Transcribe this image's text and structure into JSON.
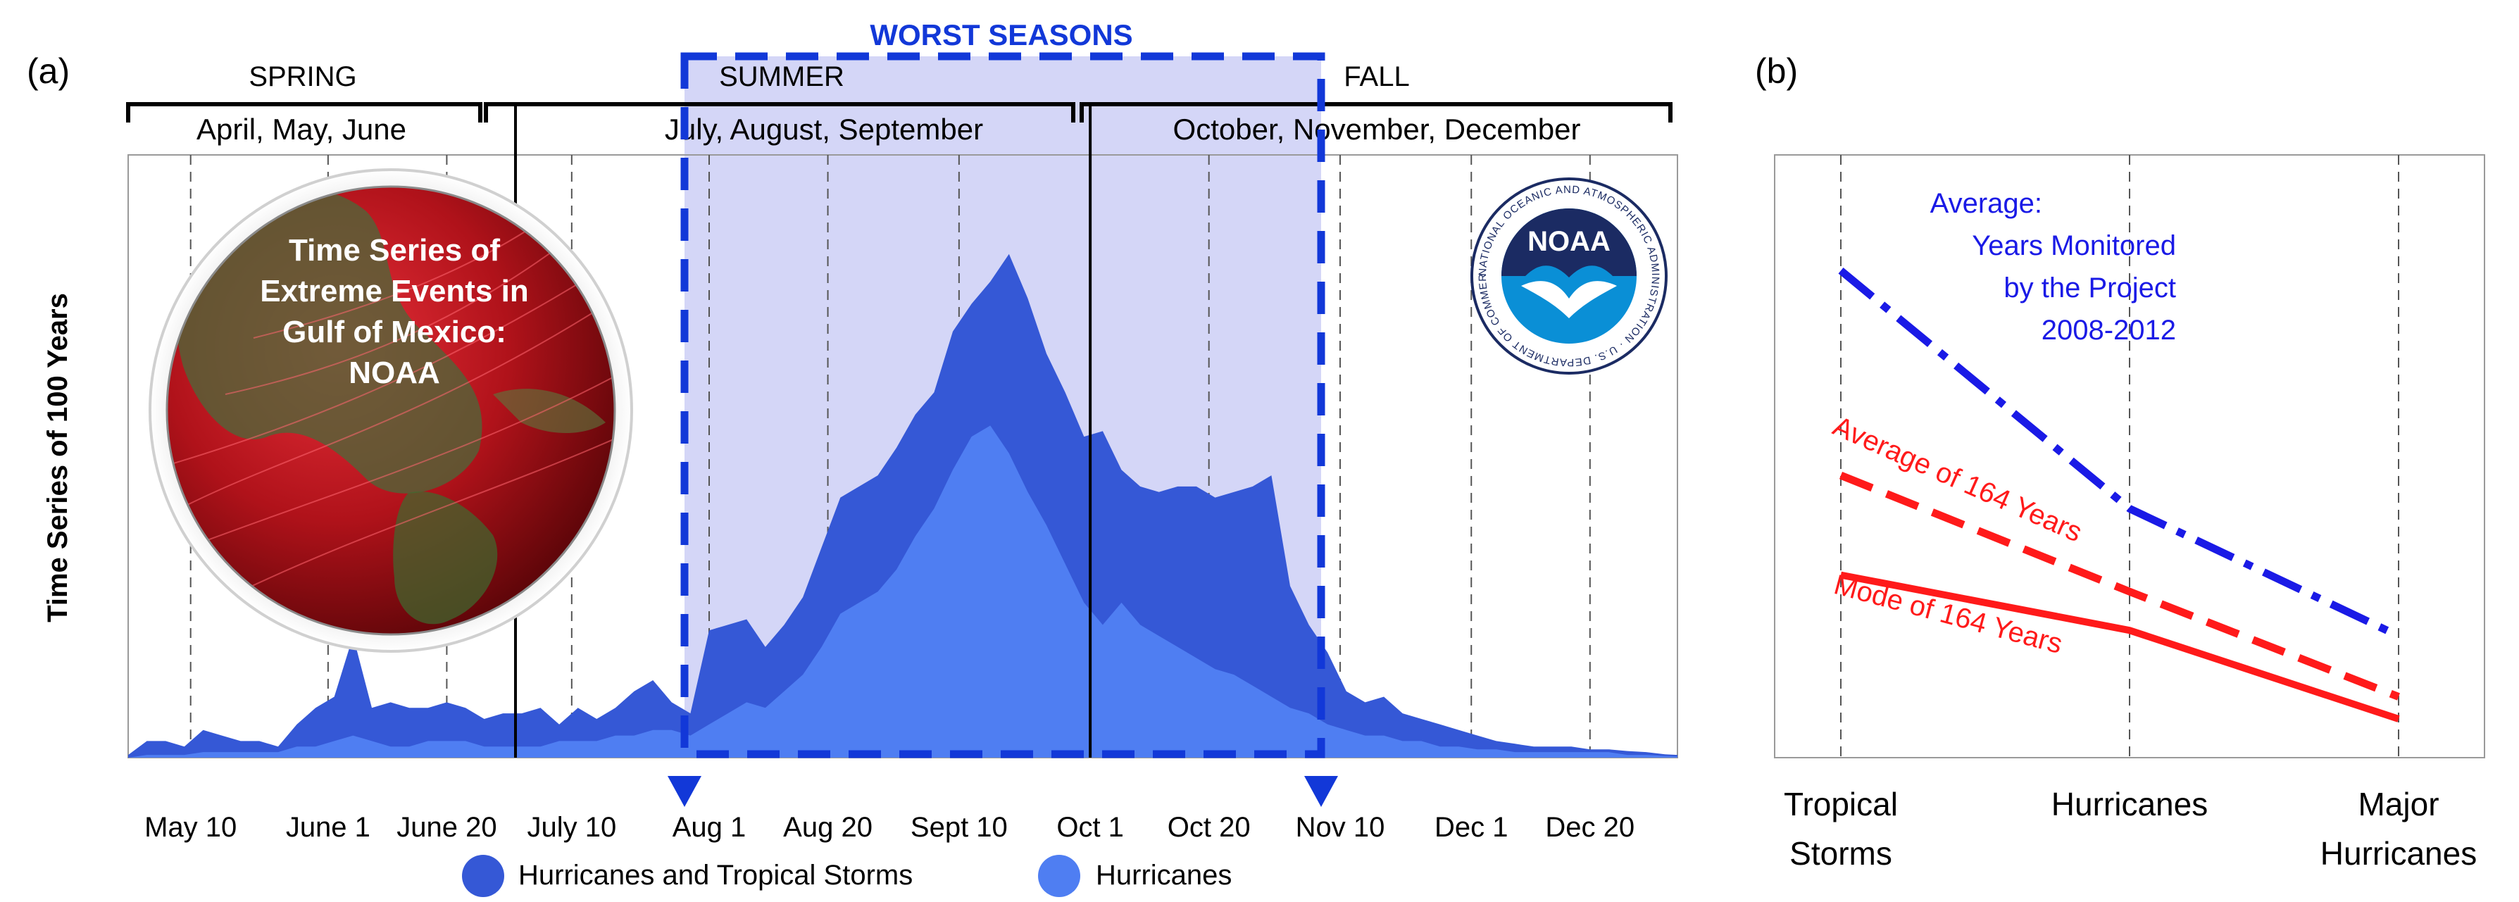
{
  "panel_a": {
    "label": "(a)",
    "highlight_title": "WORST SEASONS",
    "seasons": [
      {
        "name": "SPRING",
        "months": "April, May, June"
      },
      {
        "name": "SUMMER",
        "months": "July, August, September"
      },
      {
        "name": "FALL",
        "months": "October, November, December"
      }
    ],
    "globe_text": [
      "Time Series of",
      "Extreme Events in",
      "Gulf of Mexico:",
      "NOAA"
    ],
    "logo": {
      "center_text": "NOAA",
      "ring_text": "NATIONAL OCEANIC AND ATMOSPHERIC ADMINISTRATION · U.S. DEPARTMENT OF COMMERCE"
    }
  },
  "panel_b": {
    "label": "(b)"
  },
  "colors": {
    "storms": "#3558d6",
    "hurricanes": "#4f7ef2",
    "highlight_fill": "#c8cbf5",
    "highlight_border": "#1238d8",
    "average_project": "#1a1ae6",
    "average_164": "#ff1a1a",
    "mode_164": "#ff1a1a",
    "globe_ocean": "#b0121a",
    "logo_blue": "#0a8fd6",
    "logo_navy": "#1b2b63"
  },
  "chart_data": [
    {
      "type": "area",
      "id": "seasonal-activity",
      "ylabel": "Time Series of 100 Years",
      "xlabel": "",
      "x_unit": "day of year",
      "xlim": [
        120,
        368
      ],
      "ylim": [
        0,
        100
      ],
      "tick_labels": [
        "May 10",
        "June 1",
        "June 20",
        "July 10",
        "Aug 1",
        "Aug 20",
        "Sept 10",
        "Oct 1",
        "Oct 20",
        "Nov 10",
        "Dec 1",
        "Dec 20"
      ],
      "tick_positions": [
        130,
        152,
        171,
        191,
        213,
        232,
        253,
        274,
        293,
        314,
        335,
        354
      ],
      "season_dividers": [
        182,
        274
      ],
      "highlight_range": [
        213,
        314
      ],
      "grid": "vertical dashed",
      "legend": "bottom",
      "x": [
        120,
        123,
        126,
        129,
        132,
        135,
        138,
        141,
        144,
        147,
        150,
        153,
        156,
        159,
        162,
        165,
        168,
        171,
        174,
        177,
        180,
        183,
        186,
        189,
        192,
        195,
        198,
        201,
        204,
        207,
        210,
        213,
        216,
        219,
        222,
        225,
        228,
        231,
        234,
        237,
        240,
        243,
        246,
        249,
        252,
        255,
        258,
        261,
        264,
        267,
        270,
        273,
        276,
        279,
        282,
        285,
        288,
        291,
        294,
        297,
        300,
        303,
        306,
        309,
        312,
        315,
        318,
        321,
        324,
        327,
        330,
        333,
        336,
        339,
        342,
        345,
        348,
        351,
        354,
        357,
        360,
        363,
        366,
        368
      ],
      "series": [
        {
          "name": "Hurricanes and Tropical Storms",
          "values": [
            0.5,
            3,
            3,
            2,
            5,
            4,
            3,
            3,
            2,
            6,
            9,
            11,
            22,
            9,
            10,
            9,
            9,
            10,
            9,
            7,
            8,
            8,
            9,
            6,
            9,
            7,
            9,
            12,
            14,
            10,
            8,
            23,
            24,
            25,
            20,
            24,
            29,
            38,
            47,
            49,
            51,
            56,
            62,
            66,
            77,
            82,
            86,
            91,
            83,
            73,
            66,
            58,
            59,
            52,
            49,
            48,
            49,
            49,
            47,
            48,
            49,
            51,
            31,
            24,
            19,
            12,
            10,
            11,
            8,
            7,
            6,
            5,
            4,
            3,
            2.5,
            2,
            2,
            2,
            1.5,
            1.5,
            1.2,
            1,
            0.6,
            0.5
          ]
        },
        {
          "name": "Hurricanes",
          "values": [
            0,
            0.5,
            0.5,
            0.5,
            1,
            1,
            1,
            1,
            1,
            2,
            2,
            3,
            4,
            3,
            2,
            2,
            3,
            3,
            3,
            2,
            2,
            2,
            2,
            3,
            3,
            3,
            4,
            4,
            5,
            5,
            4,
            6,
            8,
            10,
            9,
            12,
            15,
            20,
            26,
            28,
            30,
            34,
            40,
            45,
            52,
            58,
            60,
            55,
            48,
            42,
            35,
            28,
            24,
            28,
            24,
            22,
            20,
            18,
            16,
            15,
            13,
            11,
            9,
            8,
            6,
            5,
            4,
            4,
            3,
            3,
            2,
            2,
            1.5,
            1.5,
            1,
            1,
            1,
            1,
            1,
            1,
            0.5,
            0.5,
            0.3,
            0.2
          ]
        }
      ]
    },
    {
      "type": "line",
      "id": "storm-category-comparison",
      "categories": [
        "Tropical Storms",
        "Hurricanes",
        "Major Hurricanes"
      ],
      "ylim": [
        0,
        100
      ],
      "grid": "vertical dashed",
      "series": [
        {
          "name": "Average: Years Monitored by the Project 2008-2012",
          "label_lines": [
            "Average:",
            "Years Monitored",
            "by the Project",
            "2008-2012"
          ],
          "style": "dashdot",
          "values": [
            88,
            45,
            22
          ]
        },
        {
          "name": "Average of 164 Years",
          "label_lines": [
            "Average of 164 Years"
          ],
          "style": "dashed",
          "values": [
            51,
            30,
            11
          ]
        },
        {
          "name": "Mode of 164 Years",
          "label_lines": [
            "Mode of 164 Years"
          ],
          "style": "solid",
          "values": [
            33,
            23,
            7
          ]
        }
      ]
    }
  ]
}
